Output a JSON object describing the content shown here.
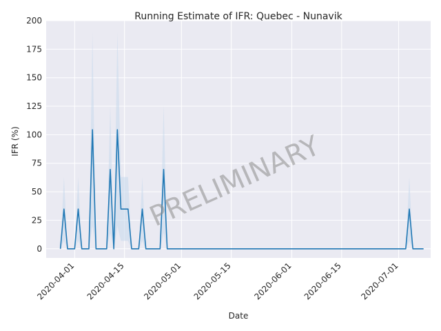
{
  "chart_data": {
    "type": "line",
    "title": "Running Estimate of IFR: Quebec - Nunavik",
    "xlabel": "Date",
    "ylabel": "IFR (%)",
    "ylim": [
      -8,
      200
    ],
    "xlim": [
      "2020-03-24",
      "2020-07-10"
    ],
    "yticks": [
      0,
      25,
      50,
      75,
      100,
      125,
      150,
      175,
      200
    ],
    "xticks": [
      "2020-04-01",
      "2020-04-15",
      "2020-05-01",
      "2020-05-15",
      "2020-06-01",
      "2020-06-15",
      "2020-07-01"
    ],
    "grid": true,
    "watermark": "PRELIMINARY",
    "colors": {
      "line": "#1f77b4",
      "band": "#c6d8ec",
      "background": "#eaeaf2",
      "grid": "#ffffff"
    },
    "series": [
      {
        "values": [
          [
            "2020-03-28",
            0
          ],
          [
            "2020-03-29",
            34.8
          ],
          [
            "2020-03-30",
            0
          ],
          [
            "2020-04-01",
            0
          ],
          [
            "2020-04-02",
            34.8
          ],
          [
            "2020-04-03",
            0
          ],
          [
            "2020-04-05",
            0
          ],
          [
            "2020-04-06",
            104.4
          ],
          [
            "2020-04-07",
            0
          ],
          [
            "2020-04-10",
            0
          ],
          [
            "2020-04-11",
            69.6
          ],
          [
            "2020-04-12",
            0
          ],
          [
            "2020-04-13",
            104.4
          ],
          [
            "2020-04-14",
            34.8
          ],
          [
            "2020-04-16",
            34.8
          ],
          [
            "2020-04-17",
            0
          ],
          [
            "2020-04-19",
            0
          ],
          [
            "2020-04-20",
            34.8
          ],
          [
            "2020-04-21",
            0
          ],
          [
            "2020-04-25",
            0
          ],
          [
            "2020-04-26",
            69.6
          ],
          [
            "2020-04-27",
            0
          ],
          [
            "2020-07-03",
            0
          ],
          [
            "2020-07-04",
            34.8
          ],
          [
            "2020-07-05",
            0
          ],
          [
            "2020-07-08",
            0
          ]
        ]
      }
    ],
    "band": {
      "upper": [
        [
          "2020-03-28",
          0
        ],
        [
          "2020-03-29",
          63
        ],
        [
          "2020-03-30",
          0
        ],
        [
          "2020-04-01",
          0
        ],
        [
          "2020-04-02",
          63
        ],
        [
          "2020-04-03",
          0
        ],
        [
          "2020-04-05",
          0
        ],
        [
          "2020-04-06",
          190
        ],
        [
          "2020-04-07",
          0
        ],
        [
          "2020-04-10",
          0
        ],
        [
          "2020-04-11",
          126
        ],
        [
          "2020-04-12",
          0
        ],
        [
          "2020-04-13",
          190
        ],
        [
          "2020-04-14",
          63
        ],
        [
          "2020-04-16",
          63
        ],
        [
          "2020-04-17",
          0
        ],
        [
          "2020-04-19",
          0
        ],
        [
          "2020-04-20",
          63
        ],
        [
          "2020-04-21",
          0
        ],
        [
          "2020-04-25",
          0
        ],
        [
          "2020-04-26",
          126
        ],
        [
          "2020-04-27",
          0
        ],
        [
          "2020-07-03",
          0
        ],
        [
          "2020-07-04",
          63
        ],
        [
          "2020-07-05",
          0
        ],
        [
          "2020-07-08",
          0
        ]
      ],
      "lower": [
        [
          "2020-03-28",
          0
        ],
        [
          "2020-03-29",
          7
        ],
        [
          "2020-03-30",
          0
        ],
        [
          "2020-04-01",
          0
        ],
        [
          "2020-04-02",
          7
        ],
        [
          "2020-04-03",
          0
        ],
        [
          "2020-04-05",
          0
        ],
        [
          "2020-04-06",
          20
        ],
        [
          "2020-04-07",
          0
        ],
        [
          "2020-04-10",
          0
        ],
        [
          "2020-04-11",
          14
        ],
        [
          "2020-04-12",
          0
        ],
        [
          "2020-04-13",
          20
        ],
        [
          "2020-04-14",
          7
        ],
        [
          "2020-04-16",
          7
        ],
        [
          "2020-04-17",
          0
        ],
        [
          "2020-04-19",
          0
        ],
        [
          "2020-04-20",
          7
        ],
        [
          "2020-04-21",
          0
        ],
        [
          "2020-04-25",
          0
        ],
        [
          "2020-04-26",
          14
        ],
        [
          "2020-04-27",
          0
        ],
        [
          "2020-07-03",
          0
        ],
        [
          "2020-07-04",
          7
        ],
        [
          "2020-07-05",
          0
        ],
        [
          "2020-07-08",
          0
        ]
      ]
    }
  }
}
